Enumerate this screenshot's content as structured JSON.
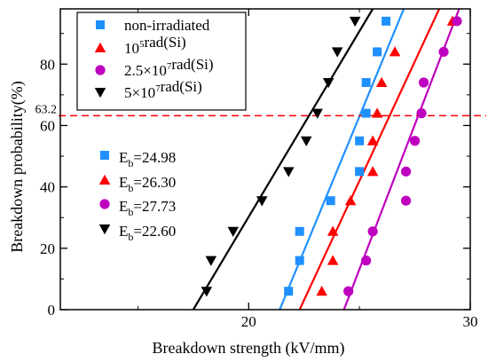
{
  "chart_data": {
    "type": "scatter",
    "xlabel": "Breakdown strength (kV/mm)",
    "ylabel": "Breakdown probability(%)",
    "xlim": [
      11.5,
      30
    ],
    "ylim": [
      0,
      98
    ],
    "xticks": [
      20,
      30
    ],
    "yticks": [
      0,
      20,
      40,
      60,
      80
    ],
    "grid": false,
    "legend_position": "top-left",
    "reference_line": {
      "y": 63.2,
      "label": "63.2",
      "color": "#ff0000",
      "style": "dashed"
    },
    "series": [
      {
        "name": "non-irradiated",
        "color": "#1e90ff",
        "marker": "square",
        "x": [
          21.8,
          22.3,
          22.3,
          23.7,
          25.0,
          25.0,
          25.3,
          25.3,
          25.8,
          26.2
        ],
        "y": [
          6,
          16,
          25.5,
          35.5,
          45,
          55,
          64,
          74,
          84,
          94
        ],
        "fit": {
          "x": [
            21.4,
            27.0
          ],
          "y": [
            0,
            98
          ]
        }
      },
      {
        "name": "10⁵rad(Si)",
        "color": "#ff0000",
        "marker": "triangle-up",
        "x": [
          23.3,
          23.8,
          23.8,
          24.6,
          25.6,
          25.6,
          25.8,
          26.0,
          26.6,
          29.2
        ],
        "y": [
          6,
          16,
          25.5,
          35.5,
          45,
          55,
          64,
          74,
          84,
          94
        ],
        "fit": {
          "x": [
            22.3,
            28.6
          ],
          "y": [
            0,
            98
          ]
        }
      },
      {
        "name": "2.5×10⁷rad(Si)",
        "color": "#bf00bf",
        "marker": "circle",
        "x": [
          24.5,
          25.3,
          25.6,
          27.1,
          27.1,
          27.5,
          27.8,
          27.9,
          28.8,
          29.4
        ],
        "y": [
          6,
          16,
          25.5,
          35.5,
          45,
          55,
          64,
          74,
          84,
          94
        ],
        "fit": {
          "x": [
            24.3,
            29.5
          ],
          "y": [
            0,
            98
          ]
        }
      },
      {
        "name": "5×10⁷rad(Si)",
        "color": "#000000",
        "marker": "triangle-down",
        "x": [
          18.1,
          18.3,
          19.3,
          20.6,
          21.8,
          22.6,
          23.1,
          23.6,
          24.0,
          24.8
        ],
        "y": [
          6,
          16,
          25.5,
          35.5,
          45,
          55,
          64,
          74,
          84,
          94
        ],
        "fit": {
          "x": [
            17.5,
            25.6
          ],
          "y": [
            0,
            98
          ]
        }
      }
    ],
    "eb_labels": [
      {
        "prefix": "E",
        "sub": "b",
        "value": "=24.98",
        "color": "#1e90ff",
        "marker": "square"
      },
      {
        "prefix": "E",
        "sub": "b",
        "value": "=26.30",
        "color": "#ff0000",
        "marker": "triangle-up"
      },
      {
        "prefix": "E",
        "sub": "b",
        "value": "=27.73",
        "color": "#bf00bf",
        "marker": "circle"
      },
      {
        "prefix": "E",
        "sub": "b",
        "value": "=22.60",
        "color": "#000000",
        "marker": "triangle-down"
      }
    ]
  }
}
